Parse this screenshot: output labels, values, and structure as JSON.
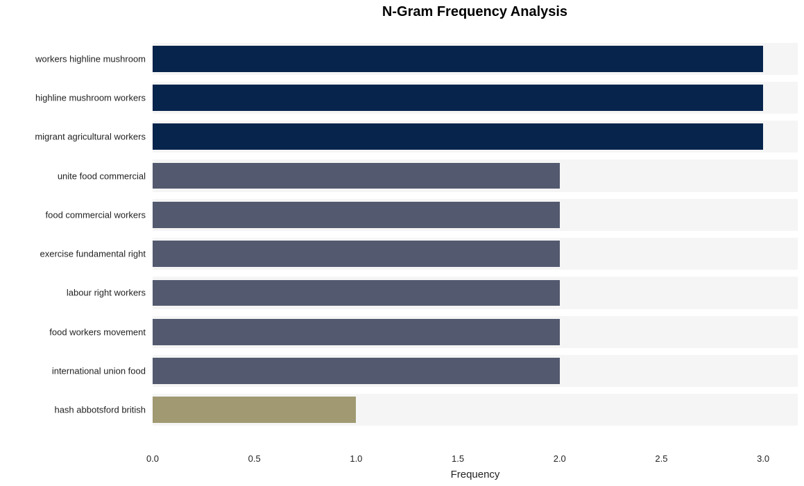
{
  "chart": {
    "type": "bar-horizontal",
    "title": "N-Gram Frequency Analysis",
    "title_fontsize": 20,
    "title_fontweight": "bold",
    "title_color": "#000000",
    "xlabel": "Frequency",
    "xlabel_fontsize": 15,
    "label_color": "#222222",
    "tick_fontsize": 13,
    "xlim": [
      0,
      3.17
    ],
    "xticks": [
      0.0,
      0.5,
      1.0,
      1.5,
      2.0,
      2.5,
      3.0
    ],
    "xtick_labels": [
      "0.0",
      "0.5",
      "1.0",
      "1.5",
      "2.0",
      "2.5",
      "3.0"
    ],
    "background_color": "#ffffff",
    "row_band_color": "#f5f5f5",
    "row_gap_color": "#ffffff",
    "bar_height_ratio": 0.78,
    "categories": [
      "workers highline mushroom",
      "highline mushroom workers",
      "migrant agricultural workers",
      "unite food commercial",
      "food commercial workers",
      "exercise fundamental right",
      "labour right workers",
      "food workers movement",
      "international union food",
      "hash abbotsford british"
    ],
    "values": [
      3,
      3,
      3,
      2,
      2,
      2,
      2,
      2,
      2,
      1
    ],
    "bar_colors": [
      "#06244c",
      "#06244c",
      "#06244c",
      "#535a6f",
      "#535a6f",
      "#535a6f",
      "#535a6f",
      "#535a6f",
      "#535a6f",
      "#a09972"
    ],
    "padding_top_rows": 0.4,
    "padding_bottom_rows": 0.4
  }
}
